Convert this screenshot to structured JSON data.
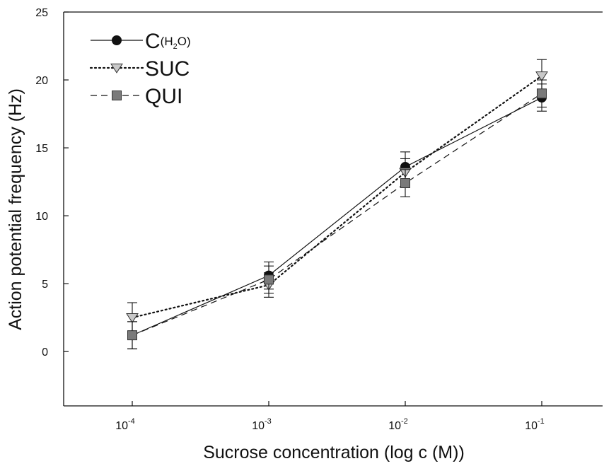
{
  "chart_data": {
    "type": "line",
    "title": "",
    "xlabel": "Sucrose concentration (log c (M))",
    "ylabel": "Action potential frequency (Hz)",
    "x": [
      "10^-4",
      "10^-3",
      "10^-2",
      "10^-1"
    ],
    "x_tick_labels": [
      {
        "base": "10",
        "exp": "-4"
      },
      {
        "base": "10",
        "exp": "-3"
      },
      {
        "base": "10",
        "exp": "-2"
      },
      {
        "base": "10",
        "exp": "-1"
      }
    ],
    "y_ticks": [
      "0",
      "5",
      "10",
      "15",
      "20",
      "25"
    ],
    "ylim": [
      -4,
      25
    ],
    "x_scale": "log",
    "grid": false,
    "legend_position": "top-left",
    "series": [
      {
        "name": "C(H2O)",
        "legend_main": "C",
        "legend_sub": "(H",
        "legend_subsub": "2",
        "legend_sub_end": "O)",
        "marker": "circle",
        "line": "solid",
        "marker_color": "#111111",
        "values": [
          1.2,
          5.6,
          13.6,
          18.7
        ],
        "error": [
          1.0,
          1.0,
          1.1,
          1.0
        ]
      },
      {
        "name": "SUC",
        "legend_main": "SUC",
        "marker": "triangle-down",
        "line": "dotted",
        "marker_color": "#c8c8c8",
        "values": [
          2.5,
          4.9,
          13.2,
          20.3
        ],
        "error": [
          1.1,
          0.9,
          1.0,
          1.2
        ]
      },
      {
        "name": "QUI",
        "legend_main": "QUI",
        "marker": "square",
        "line": "dashed",
        "marker_color": "#7a7a7a",
        "values": [
          1.2,
          5.3,
          12.4,
          19.0
        ],
        "error": [
          1.0,
          1.0,
          1.0,
          1.0
        ]
      }
    ]
  }
}
